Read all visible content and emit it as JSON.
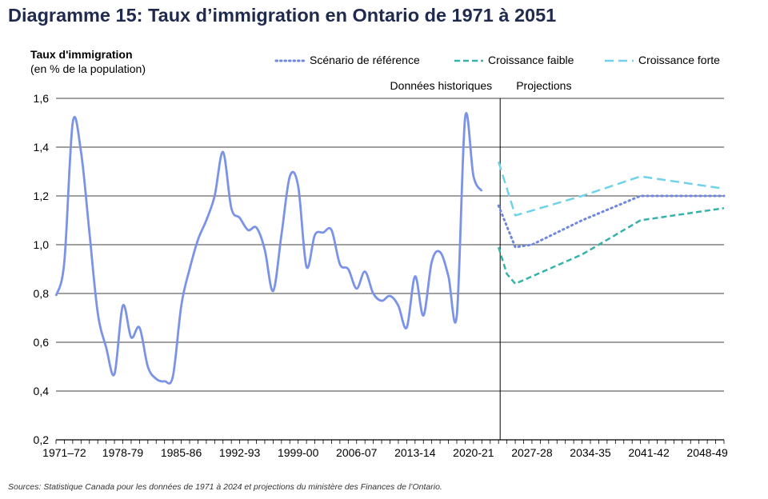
{
  "title": "Diagramme 15: Taux d’immigration en Ontario de 1971 à 2051",
  "ylabel": "Taux d'immigration",
  "ylabel_sub": "(en % de la population)",
  "source": "Sources: Statistique Canada pour les données de 1971 à 2024 et projections du ministère des Finances de l’Ontario.",
  "legend": {
    "reference": "Scénario de référence",
    "low": "Croissance faible",
    "high": "Croissance forte"
  },
  "colors": {
    "historical": "#7b93e6",
    "reference": "#6f87de",
    "low": "#35b3aa",
    "high": "#6fd2ea",
    "grid": "#000000",
    "title": "#1f2a4d"
  },
  "chart_data": {
    "type": "line",
    "ylim": [
      0.2,
      1.6
    ],
    "yticks": [
      "0,2",
      "0,4",
      "0,6",
      "0,8",
      "1,0",
      "1,2",
      "1,4",
      "1,6"
    ],
    "xlim": [
      1971,
      2051
    ],
    "xticks": [
      "1971–72",
      "1978-79",
      "1985-86",
      "1992-93",
      "1999-00",
      "2006-07",
      "2013-14",
      "2020-21",
      "2027-28",
      "2034-35",
      "2041-42",
      "2048-49"
    ],
    "grid": "horizontal",
    "divider": {
      "x": 2024,
      "left_label": "Données historiques",
      "right_label": "Projections"
    },
    "series": [
      {
        "name": "",
        "key": "historical",
        "style": "solid",
        "points": [
          [
            1971,
            0.79
          ],
          [
            1972,
            0.93
          ],
          [
            1973,
            1.5
          ],
          [
            1974,
            1.38
          ],
          [
            1975,
            1.05
          ],
          [
            1976,
            0.72
          ],
          [
            1977,
            0.58
          ],
          [
            1978,
            0.47
          ],
          [
            1979,
            0.75
          ],
          [
            1980,
            0.62
          ],
          [
            1981,
            0.66
          ],
          [
            1982,
            0.5
          ],
          [
            1983,
            0.45
          ],
          [
            1984,
            0.44
          ],
          [
            1985,
            0.46
          ],
          [
            1986,
            0.75
          ],
          [
            1987,
            0.9
          ],
          [
            1988,
            1.02
          ],
          [
            1989,
            1.1
          ],
          [
            1990,
            1.2
          ],
          [
            1991,
            1.38
          ],
          [
            1992,
            1.15
          ],
          [
            1993,
            1.11
          ],
          [
            1994,
            1.06
          ],
          [
            1995,
            1.07
          ],
          [
            1996,
            0.98
          ],
          [
            1997,
            0.81
          ],
          [
            1998,
            1.04
          ],
          [
            1999,
            1.28
          ],
          [
            2000,
            1.24
          ],
          [
            2001,
            0.91
          ],
          [
            2002,
            1.04
          ],
          [
            2003,
            1.05
          ],
          [
            2004,
            1.06
          ],
          [
            2005,
            0.92
          ],
          [
            2006,
            0.9
          ],
          [
            2007,
            0.82
          ],
          [
            2008,
            0.89
          ],
          [
            2009,
            0.8
          ],
          [
            2010,
            0.77
          ],
          [
            2011,
            0.79
          ],
          [
            2012,
            0.75
          ],
          [
            2013,
            0.66
          ],
          [
            2014,
            0.87
          ],
          [
            2015,
            0.71
          ],
          [
            2016,
            0.93
          ],
          [
            2017,
            0.97
          ],
          [
            2018,
            0.87
          ],
          [
            2019,
            0.71
          ],
          [
            2020,
            1.52
          ],
          [
            2021,
            1.28
          ],
          [
            2022,
            1.22
          ]
        ]
      },
      {
        "name": "Scénario de référence",
        "key": "reference",
        "style": "dotted",
        "points": [
          [
            2024,
            1.16
          ],
          [
            2026,
            0.99
          ],
          [
            2028,
            1.0
          ],
          [
            2034,
            1.1
          ],
          [
            2041,
            1.2
          ],
          [
            2051,
            1.2
          ]
        ]
      },
      {
        "name": "Croissance faible",
        "key": "low",
        "style": "dashed",
        "points": [
          [
            2024,
            0.99
          ],
          [
            2025,
            0.88
          ],
          [
            2026,
            0.84
          ],
          [
            2034,
            0.96
          ],
          [
            2041,
            1.1
          ],
          [
            2051,
            1.15
          ]
        ]
      },
      {
        "name": "Croissance forte",
        "key": "high",
        "style": "longdash",
        "points": [
          [
            2024,
            1.34
          ],
          [
            2026,
            1.12
          ],
          [
            2034,
            1.2
          ],
          [
            2041,
            1.28
          ],
          [
            2051,
            1.23
          ]
        ]
      }
    ]
  }
}
